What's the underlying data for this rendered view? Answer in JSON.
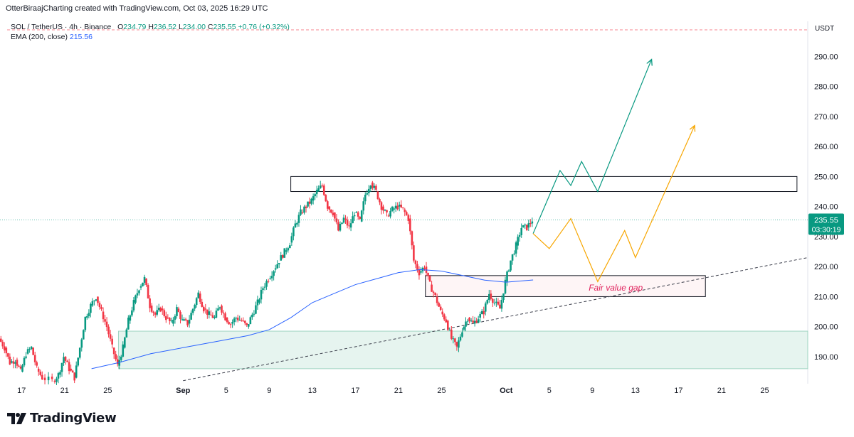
{
  "header": {
    "text": "OtterBiraajCharting created with TradingView.com, Oct 03, 2025 16:29 UTC"
  },
  "legend": {
    "symbol": "SOL / TetherUS · 4h · Binance",
    "open_label": "O",
    "open": "234.79",
    "high_label": "H",
    "high": "236.52",
    "low_label": "L",
    "low": "234.00",
    "close_label": "C",
    "close": "235.55",
    "change": "+0.76 (+0.32%)",
    "ema_label": "EMA (200, close)",
    "ema_value": "215.56"
  },
  "branding": {
    "logo_text": "TradingView",
    "logo_icon": "tradingview-logo-icon"
  },
  "colors": {
    "up": "#089981",
    "down": "#f23645",
    "ema": "#2962ff",
    "bull_path": "#089981",
    "alt_path": "#f7a600",
    "fvg_text": "#e0245e",
    "demand_zone": "#e6f4ef"
  },
  "chart_data": {
    "type": "candlestick",
    "quote_currency": "USDT",
    "ylim": [
      181,
      296
    ],
    "y_ticks": [
      190,
      200,
      210,
      220,
      230,
      240,
      250,
      260,
      270,
      280,
      290
    ],
    "y_tick_labels": [
      "190.00",
      "200.00",
      "210.00",
      "220.00",
      "230.00",
      "240.00",
      "250.00",
      "260.00",
      "270.00",
      "280.00",
      "290.00"
    ],
    "x_start": "2025-08-15",
    "x_end": "2025-10-29",
    "x_ticks": [
      {
        "date": "2025-08-17",
        "label": "17"
      },
      {
        "date": "2025-08-21",
        "label": "21"
      },
      {
        "date": "2025-08-25",
        "label": "25"
      },
      {
        "date": "2025-09-01",
        "label": "Sep"
      },
      {
        "date": "2025-09-05",
        "label": "5"
      },
      {
        "date": "2025-09-09",
        "label": "9"
      },
      {
        "date": "2025-09-13",
        "label": "13"
      },
      {
        "date": "2025-09-17",
        "label": "17"
      },
      {
        "date": "2025-09-21",
        "label": "21"
      },
      {
        "date": "2025-09-25",
        "label": "25"
      },
      {
        "date": "2025-10-01",
        "label": "Oct"
      },
      {
        "date": "2025-10-05",
        "label": "5"
      },
      {
        "date": "2025-10-09",
        "label": "9"
      },
      {
        "date": "2025-10-13",
        "label": "13"
      },
      {
        "date": "2025-10-17",
        "label": "17"
      },
      {
        "date": "2025-10-21",
        "label": "21"
      },
      {
        "date": "2025-10-25",
        "label": "25"
      }
    ],
    "price_path": [
      [
        "2025-08-15T00:00",
        196
      ],
      [
        "2025-08-15T12:00",
        193
      ],
      [
        "2025-08-16T00:00",
        188
      ],
      [
        "2025-08-16T12:00",
        189
      ],
      [
        "2025-08-17T00:00",
        185
      ],
      [
        "2025-08-17T12:00",
        191
      ],
      [
        "2025-08-18T00:00",
        193
      ],
      [
        "2025-08-18T12:00",
        186
      ],
      [
        "2025-08-19T00:00",
        183
      ],
      [
        "2025-08-20T00:00",
        182
      ],
      [
        "2025-08-20T12:00",
        184
      ],
      [
        "2025-08-21T00:00",
        190
      ],
      [
        "2025-08-21T12:00",
        186
      ],
      [
        "2025-08-22T00:00",
        183
      ],
      [
        "2025-08-22T12:00",
        193
      ],
      [
        "2025-08-23T00:00",
        203
      ],
      [
        "2025-08-23T12:00",
        207
      ],
      [
        "2025-08-24T00:00",
        210
      ],
      [
        "2025-08-24T12:00",
        205
      ],
      [
        "2025-08-25T00:00",
        200
      ],
      [
        "2025-08-25T12:00",
        193
      ],
      [
        "2025-08-26T00:00",
        187
      ],
      [
        "2025-08-26T12:00",
        193
      ],
      [
        "2025-08-27T00:00",
        202
      ],
      [
        "2025-08-27T12:00",
        208
      ],
      [
        "2025-08-28T00:00",
        213
      ],
      [
        "2025-08-28T12:00",
        216
      ],
      [
        "2025-08-29T00:00",
        207
      ],
      [
        "2025-08-29T12:00",
        204
      ],
      [
        "2025-08-30T00:00",
        206
      ],
      [
        "2025-08-30T12:00",
        203
      ],
      [
        "2025-08-31T00:00",
        201
      ],
      [
        "2025-08-31T12:00",
        206
      ],
      [
        "2025-09-01T00:00",
        202
      ],
      [
        "2025-09-01T12:00",
        201
      ],
      [
        "2025-09-02T00:00",
        206
      ],
      [
        "2025-09-02T12:00",
        211
      ],
      [
        "2025-09-03T00:00",
        206
      ],
      [
        "2025-09-03T12:00",
        204
      ],
      [
        "2025-09-04T00:00",
        203
      ],
      [
        "2025-09-04T12:00",
        207
      ],
      [
        "2025-09-05T00:00",
        203
      ],
      [
        "2025-09-05T12:00",
        201
      ],
      [
        "2025-09-06T00:00",
        203
      ],
      [
        "2025-09-06T12:00",
        202
      ],
      [
        "2025-09-07T00:00",
        200
      ],
      [
        "2025-09-07T12:00",
        204
      ],
      [
        "2025-09-08T00:00",
        208
      ],
      [
        "2025-09-08T12:00",
        213
      ],
      [
        "2025-09-09T00:00",
        216
      ],
      [
        "2025-09-09T12:00",
        219
      ],
      [
        "2025-09-10T00:00",
        222
      ],
      [
        "2025-09-10T12:00",
        225
      ],
      [
        "2025-09-11T00:00",
        228
      ],
      [
        "2025-09-11T12:00",
        234
      ],
      [
        "2025-09-12T00:00",
        238
      ],
      [
        "2025-09-12T12:00",
        240
      ],
      [
        "2025-09-13T00:00",
        242
      ],
      [
        "2025-09-13T12:00",
        245
      ],
      [
        "2025-09-14T00:00",
        247
      ],
      [
        "2025-09-14T12:00",
        240
      ],
      [
        "2025-09-15T00:00",
        238
      ],
      [
        "2025-09-15T12:00",
        232
      ],
      [
        "2025-09-16T00:00",
        236
      ],
      [
        "2025-09-16T12:00",
        233
      ],
      [
        "2025-09-17T00:00",
        238
      ],
      [
        "2025-09-17T12:00",
        235
      ],
      [
        "2025-09-18T00:00",
        244
      ],
      [
        "2025-09-18T12:00",
        248
      ],
      [
        "2025-09-19T00:00",
        245
      ],
      [
        "2025-09-19T12:00",
        240
      ],
      [
        "2025-09-20T00:00",
        237
      ],
      [
        "2025-09-20T12:00",
        239
      ],
      [
        "2025-09-21T00:00",
        240
      ],
      [
        "2025-09-21T12:00",
        239
      ],
      [
        "2025-09-22T00:00",
        236
      ],
      [
        "2025-09-22T12:00",
        222
      ],
      [
        "2025-09-23T00:00",
        218
      ],
      [
        "2025-09-23T12:00",
        220
      ],
      [
        "2025-09-24T00:00",
        214
      ],
      [
        "2025-09-24T12:00",
        210
      ],
      [
        "2025-09-25T00:00",
        205
      ],
      [
        "2025-09-25T12:00",
        202
      ],
      [
        "2025-09-26T00:00",
        196
      ],
      [
        "2025-09-26T12:00",
        193
      ],
      [
        "2025-09-27T00:00",
        199
      ],
      [
        "2025-09-27T12:00",
        203
      ],
      [
        "2025-09-28T00:00",
        201
      ],
      [
        "2025-09-28T12:00",
        203
      ],
      [
        "2025-09-29T00:00",
        205
      ],
      [
        "2025-09-29T12:00",
        211
      ],
      [
        "2025-09-30T00:00",
        208
      ],
      [
        "2025-09-30T12:00",
        206
      ],
      [
        "2025-10-01T00:00",
        215
      ],
      [
        "2025-10-01T12:00",
        222
      ],
      [
        "2025-10-02T00:00",
        227
      ],
      [
        "2025-10-02T12:00",
        233
      ],
      [
        "2025-10-03T00:00",
        233
      ],
      [
        "2025-10-03T12:00",
        235.55
      ]
    ],
    "ema_200": [
      [
        "2025-08-23T12:00",
        186
      ],
      [
        "2025-08-26T00:00",
        188
      ],
      [
        "2025-08-29T00:00",
        191
      ],
      [
        "2025-09-01T00:00",
        193
      ],
      [
        "2025-09-04T00:00",
        195
      ],
      [
        "2025-09-07T00:00",
        197
      ],
      [
        "2025-09-09T00:00",
        199
      ],
      [
        "2025-09-11T00:00",
        203
      ],
      [
        "2025-09-13T00:00",
        208
      ],
      [
        "2025-09-15T00:00",
        211
      ],
      [
        "2025-09-17T00:00",
        214
      ],
      [
        "2025-09-19T00:00",
        216
      ],
      [
        "2025-09-21T00:00",
        218
      ],
      [
        "2025-09-23T00:00",
        219
      ],
      [
        "2025-09-25T00:00",
        218.5
      ],
      [
        "2025-09-27T00:00",
        217
      ],
      [
        "2025-09-29T00:00",
        215.5
      ],
      [
        "2025-10-01T00:00",
        214.8
      ],
      [
        "2025-10-03T12:00",
        215.56
      ]
    ],
    "last_price": {
      "value": 235.55,
      "label": "235.55",
      "countdown": "03:30:19"
    },
    "annotations": {
      "resistance_zone": {
        "from": "2025-09-11T00:00",
        "to": "2025-10-28T00:00",
        "price_low": 245,
        "price_high": 250
      },
      "fair_value_gap": {
        "from": "2025-09-23T12:00",
        "to": "2025-10-19T12:00",
        "price_low": 210,
        "price_high": 217,
        "label": "Fair value gap"
      },
      "demand_zone": {
        "from": "2025-08-26T00:00",
        "to": "2025-10-29T00:00",
        "price_low": 186,
        "price_high": 198.5
      },
      "trendline": [
        [
          "2025-09-01T00:00",
          182
        ],
        [
          "2025-10-29T00:00",
          223
        ]
      ],
      "bullish_path": [
        [
          "2025-10-03T12:00",
          231
        ],
        [
          "2025-10-06T00:00",
          252
        ],
        [
          "2025-10-07T00:00",
          247
        ],
        [
          "2025-10-08T00:00",
          255
        ],
        [
          "2025-10-09T12:00",
          245
        ],
        [
          "2025-10-14T12:00",
          289
        ]
      ],
      "alternative_path": [
        [
          "2025-10-03T12:00",
          231
        ],
        [
          "2025-10-05T00:00",
          226
        ],
        [
          "2025-10-07T00:00",
          236
        ],
        [
          "2025-10-09T12:00",
          215
        ],
        [
          "2025-10-12T00:00",
          232
        ],
        [
          "2025-10-13T00:00",
          223
        ],
        [
          "2025-10-18T12:00",
          267
        ]
      ]
    }
  }
}
